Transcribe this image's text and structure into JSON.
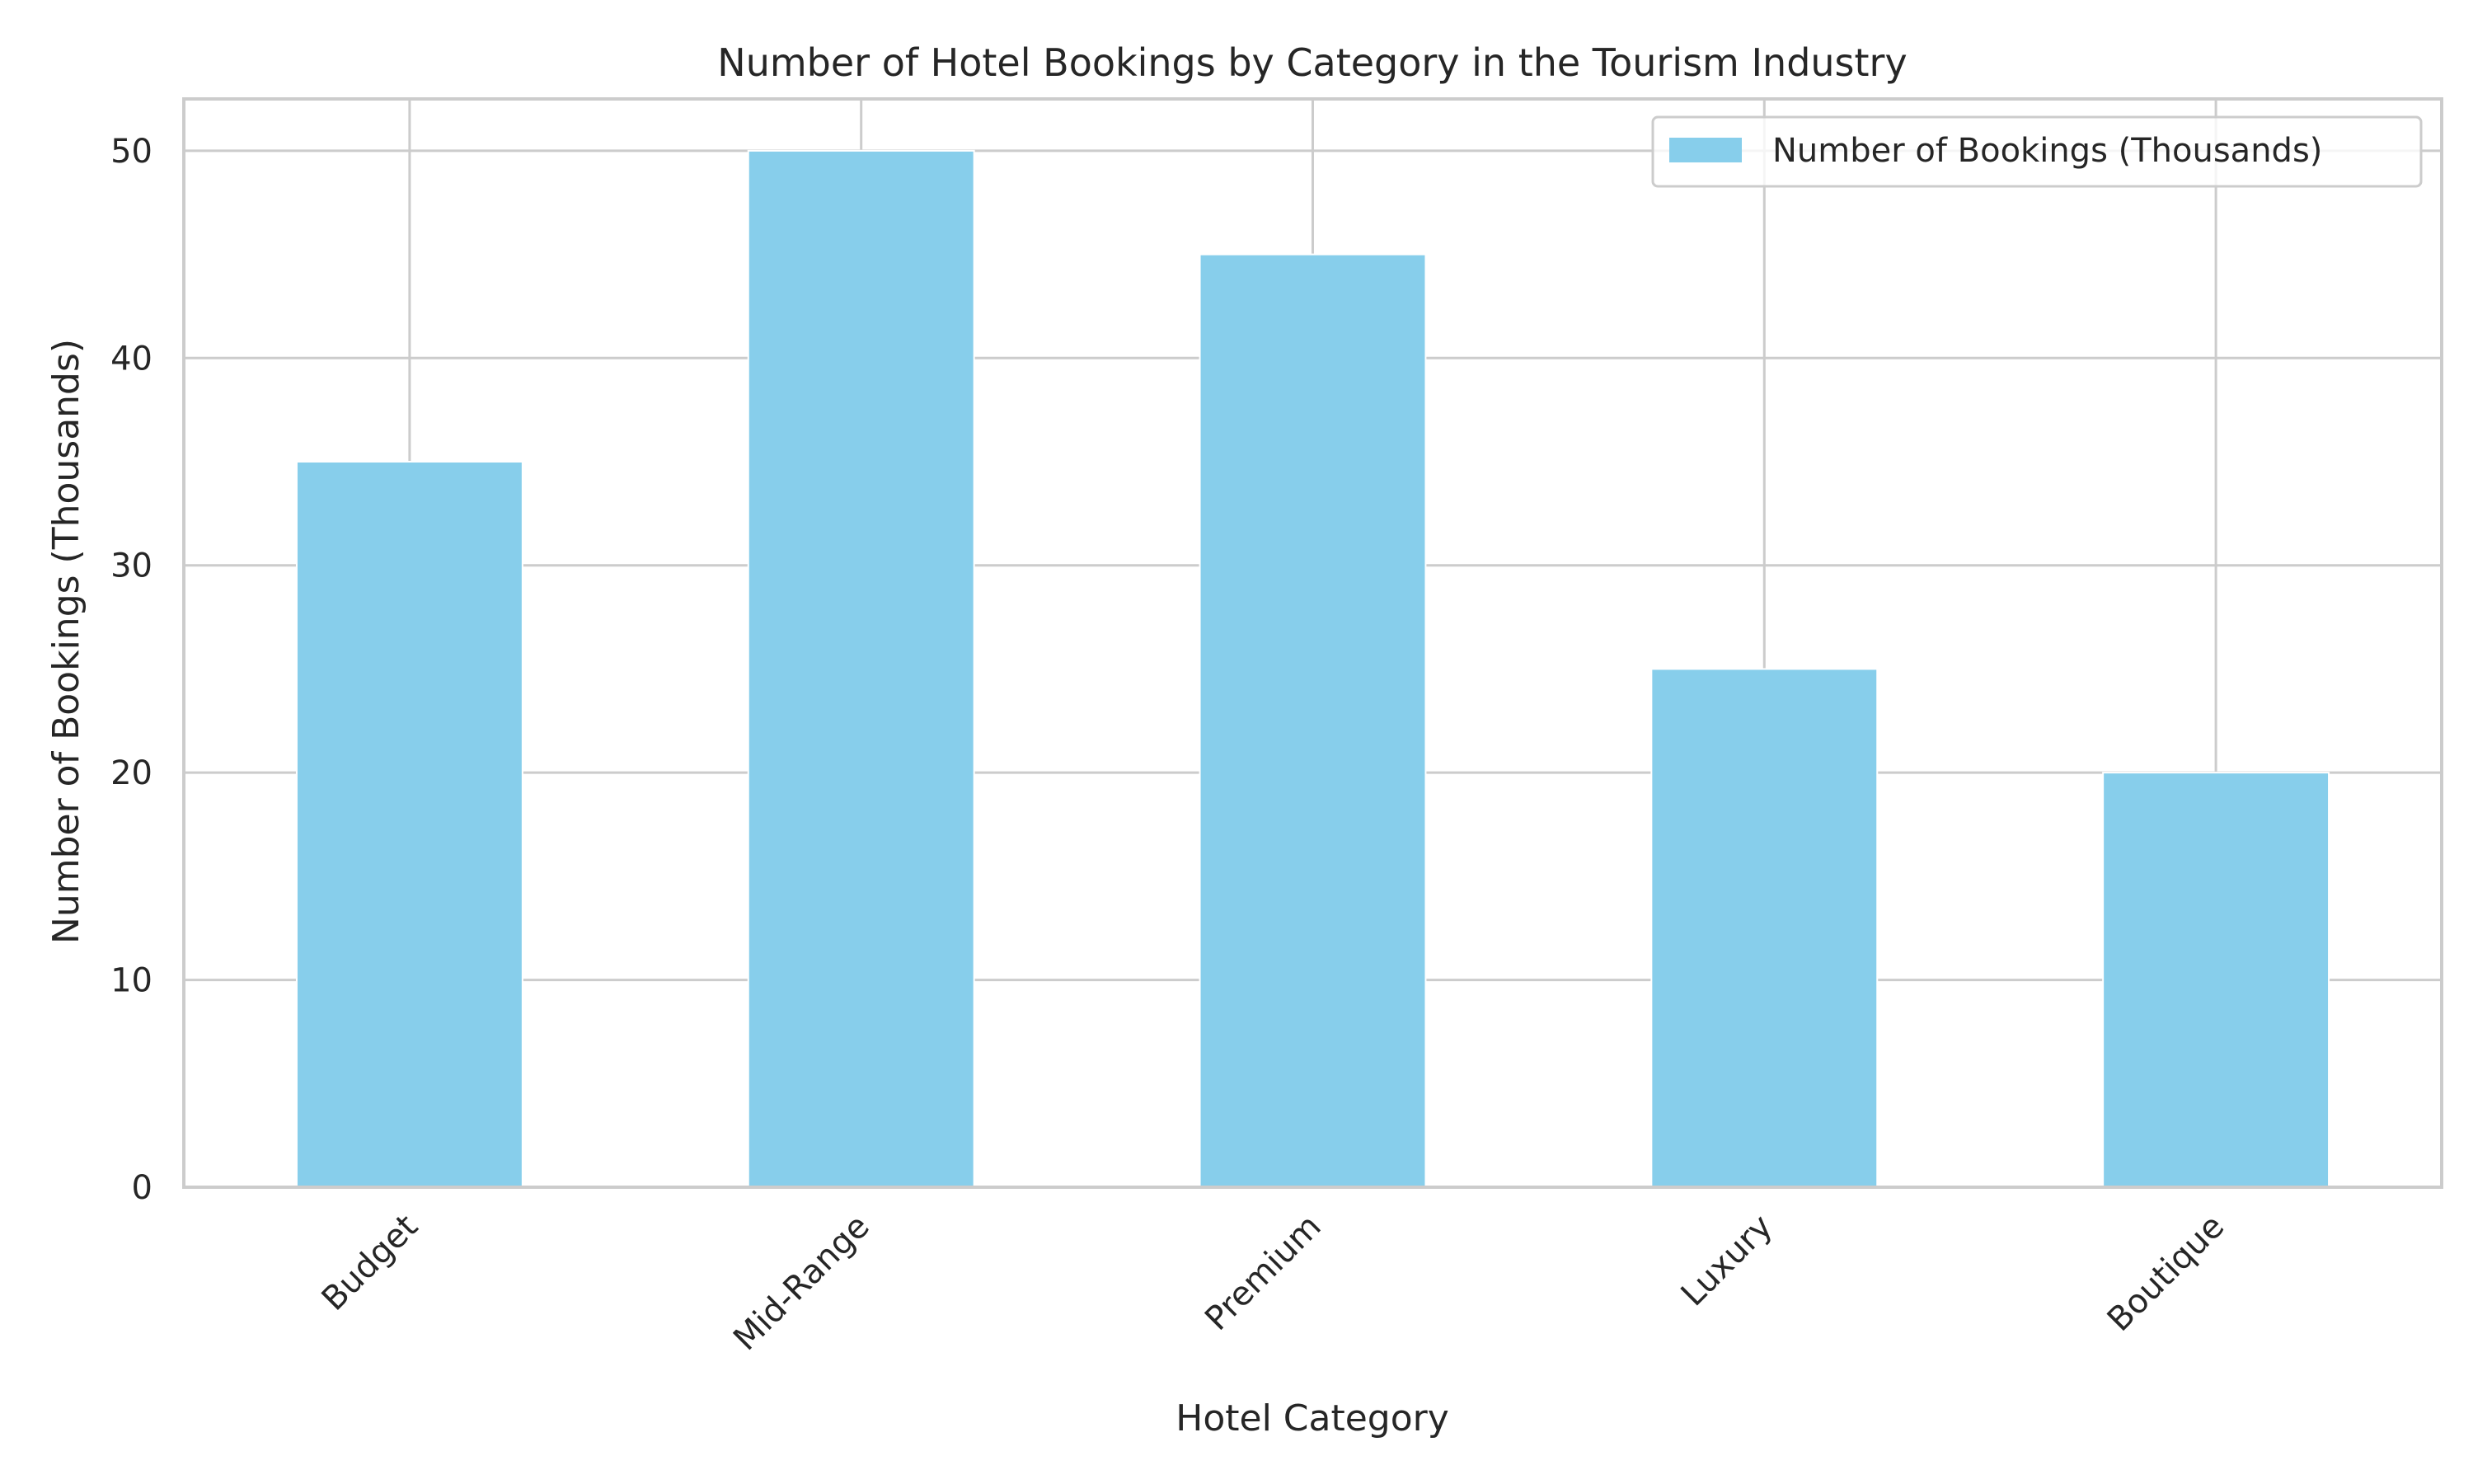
{
  "chart_data": {
    "type": "bar",
    "title": "Number of Hotel Bookings by Category in the Tourism Industry",
    "xlabel": "Hotel Category",
    "ylabel": "Number of Bookings (Thousands)",
    "categories": [
      "Budget",
      "Mid-Range",
      "Premium",
      "Luxury",
      "Boutique"
    ],
    "series": [
      {
        "name": "Number of Bookings (Thousands)",
        "values": [
          35,
          50,
          45,
          25,
          20
        ]
      }
    ],
    "ylim": [
      0,
      52.5
    ],
    "yticks": [
      0,
      10,
      20,
      30,
      40,
      50
    ],
    "ytick_labels": [
      "0",
      "10",
      "20",
      "30",
      "40",
      "50"
    ],
    "grid": true,
    "legend_position": "top-right",
    "colors": {
      "bar": "#87CEEB",
      "grid": "#cccccc",
      "spine": "#cccccc",
      "text": "#262626"
    }
  }
}
